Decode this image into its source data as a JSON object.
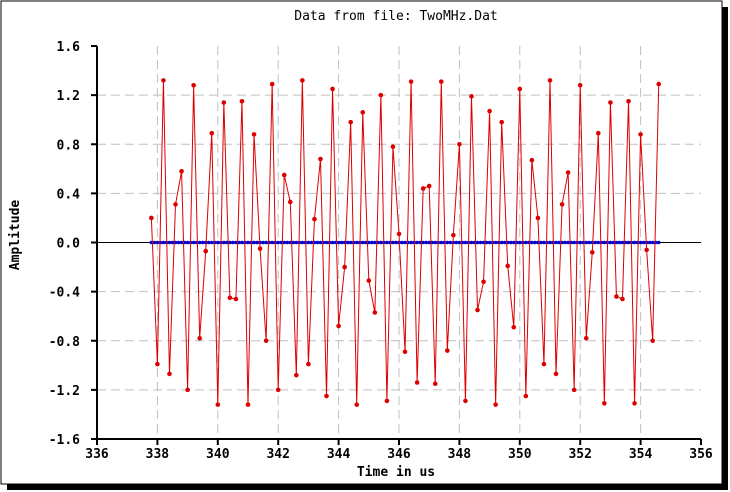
{
  "chart_data": {
    "type": "line",
    "title": "Data from file: TwoMHz.Dat",
    "xlabel": "Time in us",
    "ylabel": "Amplitude",
    "xlim": [
      336,
      356
    ],
    "ylim": [
      -1.6,
      1.6
    ],
    "xticks": [
      336,
      338,
      340,
      342,
      344,
      346,
      348,
      350,
      352,
      354,
      356
    ],
    "xtick_labels": [
      "336",
      "338",
      "340",
      "342",
      "344",
      "346",
      "348",
      "350",
      "352",
      "354",
      "356"
    ],
    "yticks": [
      1.6,
      1.2,
      0.8,
      0.4,
      0.0,
      -0.4,
      -0.8,
      -1.2,
      -1.6
    ],
    "ytick_labels": [
      "1.6",
      "1.2",
      "0.8",
      "0.4",
      "0.0",
      "-0.4",
      "-0.8",
      "-1.2",
      "-1.6"
    ],
    "grid": true,
    "colors": {
      "signal": "#dd0000",
      "baseline": "#0000cc",
      "zero_line": "#000000",
      "grid": "#c0c0c0"
    },
    "series": [
      {
        "x": [
          337.8,
          338.0,
          338.2,
          338.4,
          338.6,
          338.8,
          339.0,
          339.2,
          339.4,
          339.6,
          339.8,
          340.0,
          340.2,
          340.4,
          340.6,
          340.8,
          341.0,
          341.2,
          341.4,
          341.6,
          341.8,
          342.0,
          342.2,
          342.4,
          342.6,
          342.8,
          343.0,
          343.2,
          343.4,
          343.6,
          343.8,
          344.0,
          344.2,
          344.4,
          344.6,
          344.8,
          345.0,
          345.2,
          345.4,
          345.6,
          345.8,
          346.0,
          346.2,
          346.4,
          346.6,
          346.8,
          347.0,
          347.2,
          347.4,
          347.6,
          347.8,
          348.0,
          348.2,
          348.4,
          348.6,
          348.8,
          349.0,
          349.2,
          349.4,
          349.6,
          349.8,
          350.0,
          350.2,
          350.4,
          350.6,
          350.8,
          351.0,
          351.2,
          351.4,
          351.6,
          351.8,
          352.0,
          352.2,
          352.4,
          352.6,
          352.8,
          353.0,
          353.2,
          353.4,
          353.6,
          353.8,
          354.0,
          354.2,
          354.4,
          354.6
        ],
        "y": [
          0.2,
          -0.99,
          1.32,
          -1.07,
          0.31,
          0.58,
          -1.2,
          1.28,
          -0.78,
          -0.07,
          0.89,
          -1.32,
          1.14,
          -0.45,
          -0.46,
          1.15,
          -1.32,
          0.88,
          -0.05,
          -0.8,
          1.29,
          -1.2,
          0.55,
          0.33,
          -1.08,
          1.32,
          -0.99,
          0.19,
          0.68,
          -1.25,
          1.25,
          -0.68,
          -0.2,
          0.98,
          -1.32,
          1.06,
          -0.31,
          -0.57,
          1.2,
          -1.29,
          0.78,
          0.07,
          -0.89,
          1.31,
          -1.14,
          0.44,
          0.46,
          -1.15,
          1.31,
          -0.88,
          0.06,
          0.8,
          -1.29,
          1.19,
          -0.55,
          -0.32,
          1.07,
          -1.32,
          0.98,
          -0.19,
          -0.69,
          1.25,
          -1.25,
          0.67,
          0.2,
          -0.99,
          1.32,
          -1.07,
          0.31,
          0.57,
          -1.2,
          1.28,
          -0.78,
          -0.08,
          0.89,
          -1.31,
          1.14,
          -0.44,
          -0.46,
          1.15,
          -1.31,
          0.88,
          -0.06,
          -0.8,
          1.29
        ]
      },
      {
        "x_start": 337.8,
        "x_end": 354.6,
        "x_step": 0.1,
        "y": 0.0
      }
    ]
  }
}
